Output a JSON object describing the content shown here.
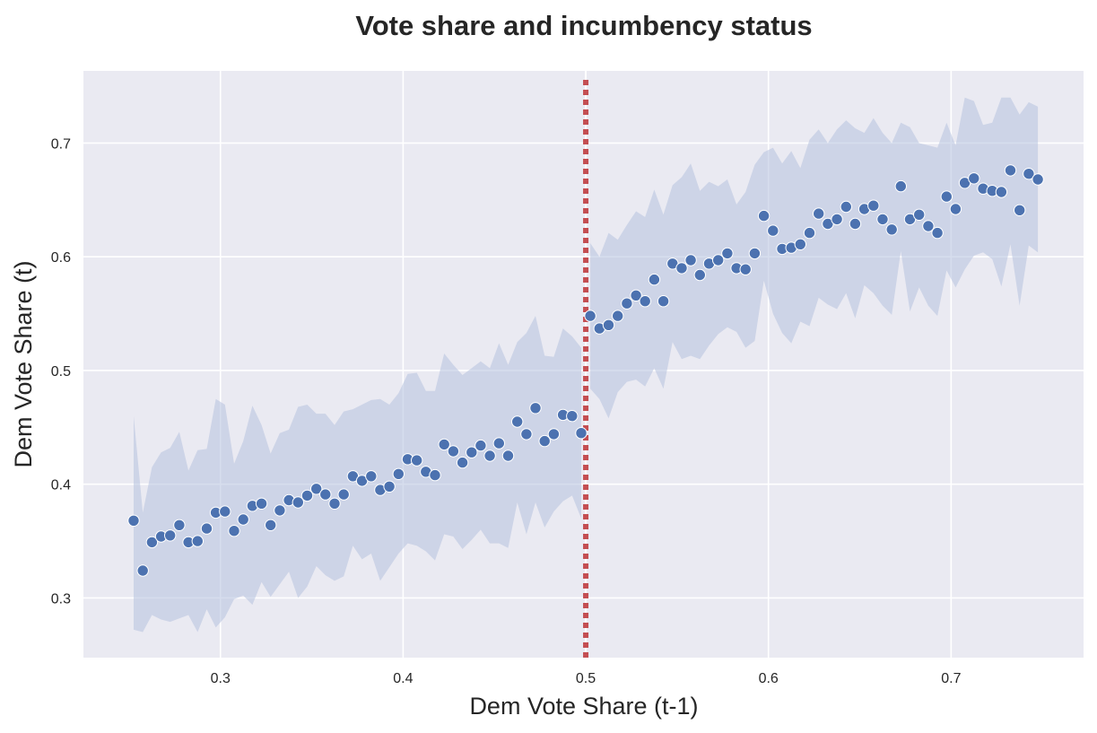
{
  "chart_data": {
    "type": "scatter",
    "title": "Vote share and incumbency status",
    "xlabel": "Dem Vote Share (t-1)",
    "ylabel": "Dem Vote Share (t)",
    "xlim": [
      0.225,
      0.7725
    ],
    "ylim": [
      0.2475,
      0.7635
    ],
    "xticks": [
      0.3,
      0.4,
      0.5,
      0.6,
      0.7
    ],
    "yticks": [
      0.3,
      0.4,
      0.5,
      0.6,
      0.7
    ],
    "xtick_labels": [
      "0.3",
      "0.4",
      "0.5",
      "0.6",
      "0.7"
    ],
    "ytick_labels": [
      "0.3",
      "0.4",
      "0.5",
      "0.6",
      "0.7"
    ],
    "grid": true,
    "cutoff": 0.5,
    "colors": {
      "background": "#eaeaf2",
      "grid": "#ffffff",
      "points": "#4c72b0",
      "band": "#b4c1df",
      "cutoff_line": "#c44e52"
    },
    "x": [
      0.2525,
      0.2575,
      0.2625,
      0.2675,
      0.2725,
      0.2775,
      0.2825,
      0.2875,
      0.2925,
      0.2975,
      0.3025,
      0.3075,
      0.3125,
      0.3175,
      0.3225,
      0.3275,
      0.3325,
      0.3375,
      0.3425,
      0.3475,
      0.3525,
      0.3575,
      0.3625,
      0.3675,
      0.3725,
      0.3775,
      0.3825,
      0.3875,
      0.3925,
      0.3975,
      0.4025,
      0.4075,
      0.4125,
      0.4175,
      0.4225,
      0.4275,
      0.4325,
      0.4375,
      0.4425,
      0.4475,
      0.4525,
      0.4575,
      0.4625,
      0.4675,
      0.4725,
      0.4775,
      0.4825,
      0.4875,
      0.4925,
      0.4975,
      0.5025,
      0.5075,
      0.5125,
      0.5175,
      0.5225,
      0.5275,
      0.5325,
      0.5375,
      0.5425,
      0.5475,
      0.5525,
      0.5575,
      0.5625,
      0.5675,
      0.5725,
      0.5775,
      0.5825,
      0.5875,
      0.5925,
      0.5975,
      0.6025,
      0.6075,
      0.6125,
      0.6175,
      0.6225,
      0.6275,
      0.6325,
      0.6375,
      0.6425,
      0.6475,
      0.6525,
      0.6575,
      0.6625,
      0.6675,
      0.6725,
      0.6775,
      0.6825,
      0.6875,
      0.6925,
      0.6975,
      0.7025,
      0.7075,
      0.7125,
      0.7175,
      0.7225,
      0.7275,
      0.7325,
      0.7375,
      0.7425,
      0.7475
    ],
    "y": [
      0.368,
      0.324,
      0.349,
      0.354,
      0.355,
      0.364,
      0.349,
      0.35,
      0.361,
      0.375,
      0.376,
      0.359,
      0.369,
      0.381,
      0.383,
      0.364,
      0.377,
      0.386,
      0.384,
      0.39,
      0.396,
      0.391,
      0.383,
      0.391,
      0.407,
      0.403,
      0.407,
      0.395,
      0.398,
      0.409,
      0.422,
      0.421,
      0.411,
      0.408,
      0.435,
      0.429,
      0.419,
      0.428,
      0.434,
      0.425,
      0.436,
      0.425,
      0.455,
      0.444,
      0.467,
      0.438,
      0.444,
      0.461,
      0.46,
      0.445,
      0.548,
      0.537,
      0.54,
      0.548,
      0.559,
      0.566,
      0.561,
      0.58,
      0.561,
      0.594,
      0.59,
      0.597,
      0.584,
      0.594,
      0.597,
      0.603,
      0.59,
      0.589,
      0.603,
      0.636,
      0.623,
      0.607,
      0.608,
      0.611,
      0.621,
      0.638,
      0.629,
      0.633,
      0.644,
      0.629,
      0.642,
      0.645,
      0.633,
      0.624,
      0.662,
      0.633,
      0.637,
      0.627,
      0.621,
      0.653,
      0.642,
      0.665,
      0.669,
      0.66,
      0.658,
      0.657,
      0.676,
      0.641,
      0.673,
      0.668
    ],
    "ci_upper": [
      0.46,
      0.375,
      0.415,
      0.428,
      0.432,
      0.446,
      0.412,
      0.43,
      0.431,
      0.475,
      0.47,
      0.418,
      0.438,
      0.469,
      0.452,
      0.427,
      0.445,
      0.448,
      0.468,
      0.47,
      0.462,
      0.462,
      0.452,
      0.464,
      0.466,
      0.47,
      0.474,
      0.475,
      0.47,
      0.48,
      0.497,
      0.498,
      0.482,
      0.482,
      0.515,
      0.505,
      0.496,
      0.502,
      0.508,
      0.502,
      0.524,
      0.505,
      0.525,
      0.533,
      0.548,
      0.513,
      0.512,
      0.537,
      0.53,
      0.52,
      0.612,
      0.6,
      0.621,
      0.615,
      0.628,
      0.64,
      0.635,
      0.659,
      0.637,
      0.663,
      0.67,
      0.682,
      0.658,
      0.666,
      0.662,
      0.668,
      0.646,
      0.657,
      0.681,
      0.692,
      0.696,
      0.682,
      0.693,
      0.678,
      0.703,
      0.712,
      0.7,
      0.712,
      0.72,
      0.713,
      0.709,
      0.722,
      0.709,
      0.7,
      0.718,
      0.714,
      0.7,
      0.698,
      0.696,
      0.718,
      0.698,
      0.74,
      0.737,
      0.716,
      0.718,
      0.74,
      0.74,
      0.725,
      0.736,
      0.732
    ],
    "ci_lower": [
      0.272,
      0.27,
      0.285,
      0.281,
      0.279,
      0.282,
      0.285,
      0.27,
      0.29,
      0.274,
      0.283,
      0.299,
      0.302,
      0.294,
      0.314,
      0.301,
      0.312,
      0.323,
      0.3,
      0.31,
      0.328,
      0.32,
      0.315,
      0.319,
      0.346,
      0.334,
      0.339,
      0.315,
      0.327,
      0.339,
      0.348,
      0.346,
      0.341,
      0.333,
      0.356,
      0.354,
      0.343,
      0.351,
      0.36,
      0.348,
      0.348,
      0.344,
      0.384,
      0.356,
      0.384,
      0.362,
      0.376,
      0.385,
      0.39,
      0.37,
      0.484,
      0.475,
      0.458,
      0.481,
      0.49,
      0.492,
      0.486,
      0.502,
      0.484,
      0.525,
      0.51,
      0.513,
      0.51,
      0.522,
      0.532,
      0.538,
      0.534,
      0.52,
      0.526,
      0.579,
      0.55,
      0.533,
      0.524,
      0.543,
      0.539,
      0.564,
      0.558,
      0.554,
      0.568,
      0.546,
      0.575,
      0.568,
      0.557,
      0.549,
      0.605,
      0.552,
      0.573,
      0.557,
      0.548,
      0.588,
      0.573,
      0.589,
      0.601,
      0.604,
      0.598,
      0.574,
      0.611,
      0.557,
      0.61,
      0.604
    ]
  }
}
